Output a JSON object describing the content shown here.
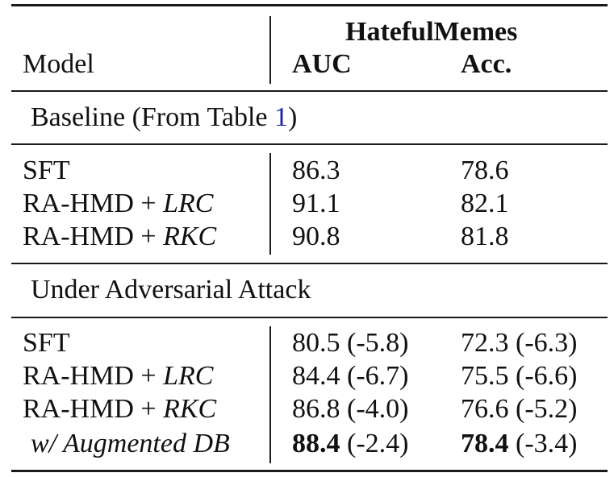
{
  "header": {
    "model": "Model",
    "dataset": "HatefulMemes",
    "auc": "AUC",
    "acc": "Acc."
  },
  "sections": [
    {
      "title_prefix": "Baseline (From Table ",
      "title_ref": "1",
      "title_suffix": ")",
      "rows": [
        {
          "model": "SFT",
          "model_suffix": "",
          "auc": "86.3",
          "auc_delta": "",
          "acc": "78.6",
          "acc_delta": ""
        },
        {
          "model": "RA-HMD + ",
          "model_suffix": "LRC",
          "auc": "91.1",
          "auc_delta": "",
          "acc": "82.1",
          "acc_delta": ""
        },
        {
          "model": "RA-HMD + ",
          "model_suffix": "RKC",
          "auc": "90.8",
          "auc_delta": "",
          "acc": "81.8",
          "acc_delta": ""
        }
      ]
    },
    {
      "title_prefix": "Under Adversarial Attack",
      "rows": [
        {
          "model": "SFT",
          "model_suffix": "",
          "auc": "80.5",
          "auc_delta": " (-5.8)",
          "acc": "72.3",
          "acc_delta": " (-6.3)"
        },
        {
          "model": "RA-HMD + ",
          "model_suffix": "LRC",
          "auc": "84.4",
          "auc_delta": " (-6.7)",
          "acc": "75.5",
          "acc_delta": " (-6.6)"
        },
        {
          "model": "RA-HMD + ",
          "model_suffix": "RKC",
          "auc": "86.8",
          "auc_delta": " (-4.0)",
          "acc": "76.6",
          "acc_delta": " (-5.2)"
        },
        {
          "model": "w/ Augmented DB",
          "model_suffix": "",
          "auc": "88.4",
          "auc_delta": " (-2.4)",
          "acc": "78.4",
          "acc_delta": " (-3.4)"
        }
      ]
    }
  ]
}
